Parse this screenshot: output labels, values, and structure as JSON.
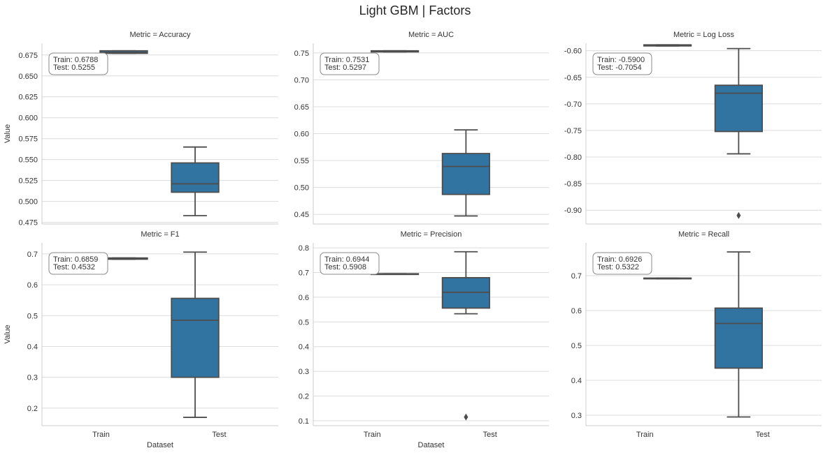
{
  "title": "Light GBM | Factors",
  "chart_data": [
    {
      "type": "box",
      "title": "Metric = Accuracy",
      "ylabel": "Value",
      "xlabel": "",
      "categories": [
        "Train",
        "Test"
      ],
      "ylim": [
        0.473,
        0.689
      ],
      "yticks": [
        0.475,
        0.5,
        0.525,
        0.55,
        0.575,
        0.6,
        0.625,
        0.65,
        0.675
      ],
      "ydec": 3,
      "annotation": [
        "Train:  0.6788",
        "Test:   0.5255"
      ],
      "show_xticks": false,
      "boxes": [
        {
          "min": 0.677,
          "q1": 0.677,
          "median": 0.678,
          "q3": 0.68,
          "max": 0.68,
          "outliers": []
        },
        {
          "min": 0.483,
          "q1": 0.511,
          "median": 0.521,
          "q3": 0.546,
          "max": 0.565,
          "outliers": []
        }
      ]
    },
    {
      "type": "box",
      "title": "Metric = AUC",
      "ylabel": "",
      "xlabel": "",
      "categories": [
        "Train",
        "Test"
      ],
      "ylim": [
        0.432,
        0.768
      ],
      "yticks": [
        0.45,
        0.5,
        0.55,
        0.6,
        0.65,
        0.7,
        0.75
      ],
      "ydec": 2,
      "annotation": [
        "Train:  0.7531",
        "Test:   0.5297"
      ],
      "show_xticks": false,
      "boxes": [
        {
          "min": 0.752,
          "q1": 0.752,
          "median": 0.753,
          "q3": 0.754,
          "max": 0.754,
          "outliers": []
        },
        {
          "min": 0.447,
          "q1": 0.487,
          "median": 0.539,
          "q3": 0.563,
          "max": 0.607,
          "outliers": []
        }
      ]
    },
    {
      "type": "box",
      "title": "Metric = Log Loss",
      "ylabel": "",
      "xlabel": "",
      "categories": [
        "Train",
        "Test"
      ],
      "ylim": [
        -0.926,
        -0.586
      ],
      "yticks": [
        -0.9,
        -0.85,
        -0.8,
        -0.75,
        -0.7,
        -0.65,
        -0.6
      ],
      "ydec": 2,
      "annotation": [
        "Train:  -0.5900",
        "Test:   -0.7054"
      ],
      "show_xticks": false,
      "boxes": [
        {
          "min": -0.591,
          "q1": -0.591,
          "median": -0.59,
          "q3": -0.589,
          "max": -0.589,
          "outliers": []
        },
        {
          "min": -0.794,
          "q1": -0.752,
          "median": -0.68,
          "q3": -0.665,
          "max": -0.596,
          "outliers": [
            -0.91
          ]
        }
      ]
    },
    {
      "type": "box",
      "title": "Metric = F1",
      "ylabel": "Value",
      "xlabel": "Dataset",
      "categories": [
        "Train",
        "Test"
      ],
      "ylim": [
        0.143,
        0.736
      ],
      "yticks": [
        0.2,
        0.3,
        0.4,
        0.5,
        0.6,
        0.7
      ],
      "ydec": 1,
      "annotation": [
        "Train:  0.6859",
        "Test:   0.4532"
      ],
      "show_xticks": true,
      "boxes": [
        {
          "min": 0.683,
          "q1": 0.683,
          "median": 0.685,
          "q3": 0.687,
          "max": 0.687,
          "outliers": []
        },
        {
          "min": 0.17,
          "q1": 0.3,
          "median": 0.485,
          "q3": 0.556,
          "max": 0.706,
          "outliers": []
        }
      ]
    },
    {
      "type": "box",
      "title": "Metric = Precision",
      "ylabel": "",
      "xlabel": "Dataset",
      "categories": [
        "Train",
        "Test"
      ],
      "ylim": [
        0.08,
        0.82
      ],
      "yticks": [
        0.1,
        0.2,
        0.3,
        0.4,
        0.5,
        0.6,
        0.7,
        0.8
      ],
      "ydec": 1,
      "annotation": [
        "Train:  0.6944",
        "Test:   0.5908"
      ],
      "show_xticks": true,
      "boxes": [
        {
          "min": 0.693,
          "q1": 0.693,
          "median": 0.694,
          "q3": 0.695,
          "max": 0.695,
          "outliers": []
        },
        {
          "min": 0.533,
          "q1": 0.556,
          "median": 0.62,
          "q3": 0.679,
          "max": 0.784,
          "outliers": [
            0.115
          ]
        }
      ]
    },
    {
      "type": "box",
      "title": "Metric = Recall",
      "ylabel": "",
      "xlabel": "",
      "categories": [
        "Train",
        "Test"
      ],
      "ylim": [
        0.27,
        0.794
      ],
      "yticks": [
        0.3,
        0.4,
        0.5,
        0.6,
        0.7
      ],
      "ydec": 1,
      "annotation": [
        "Train:  0.6926",
        "Test:   0.5322"
      ],
      "show_xticks": true,
      "boxes": [
        {
          "min": 0.691,
          "q1": 0.691,
          "median": 0.692,
          "q3": 0.693,
          "max": 0.693,
          "outliers": []
        },
        {
          "min": 0.295,
          "q1": 0.435,
          "median": 0.563,
          "q3": 0.607,
          "max": 0.768,
          "outliers": []
        }
      ]
    }
  ],
  "colors": {
    "box": "#3274a1",
    "line": "#4d4d4d",
    "grid": "#dcdcdc"
  }
}
